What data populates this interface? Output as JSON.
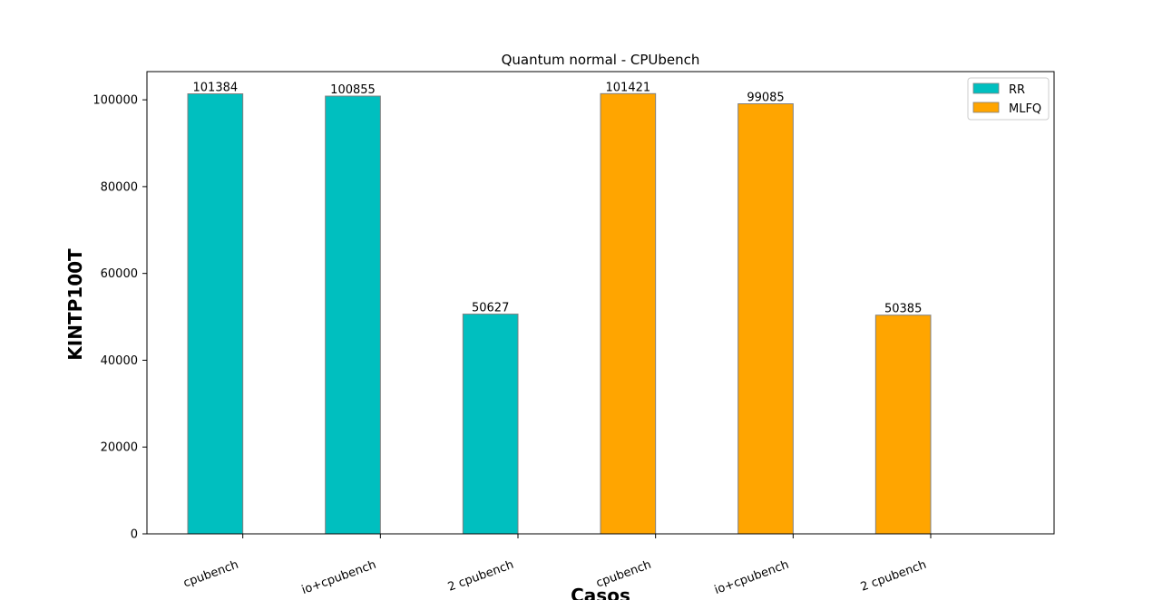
{
  "chart_data": {
    "type": "bar",
    "title": "Quantum normal - CPUbench",
    "xlabel": "Casos",
    "ylabel": "KINTP100T",
    "ylim": [
      0,
      106500
    ],
    "yticks": [
      0,
      20000,
      40000,
      60000,
      80000,
      100000
    ],
    "ytick_labels": [
      "0",
      "20000",
      "40000",
      "60000",
      "80000",
      "100000"
    ],
    "categories": [
      "cpubench",
      "io+cpubench",
      "2 cpubench",
      "cpubench",
      "io+cpubench",
      "2 cpubench"
    ],
    "series": [
      {
        "name": "RR",
        "color": "#00BFBF",
        "values": [
          101384,
          100855,
          50627,
          null,
          null,
          null
        ]
      },
      {
        "name": "MLFQ",
        "color": "#FFA500",
        "values": [
          null,
          null,
          null,
          101421,
          99085,
          50385
        ]
      }
    ],
    "data_labels": [
      "101384",
      "100855",
      "50627",
      "101421",
      "99085",
      "50385"
    ],
    "legend": {
      "position": "top-right",
      "entries": [
        "RR",
        "MLFQ"
      ]
    },
    "grid": false
  }
}
